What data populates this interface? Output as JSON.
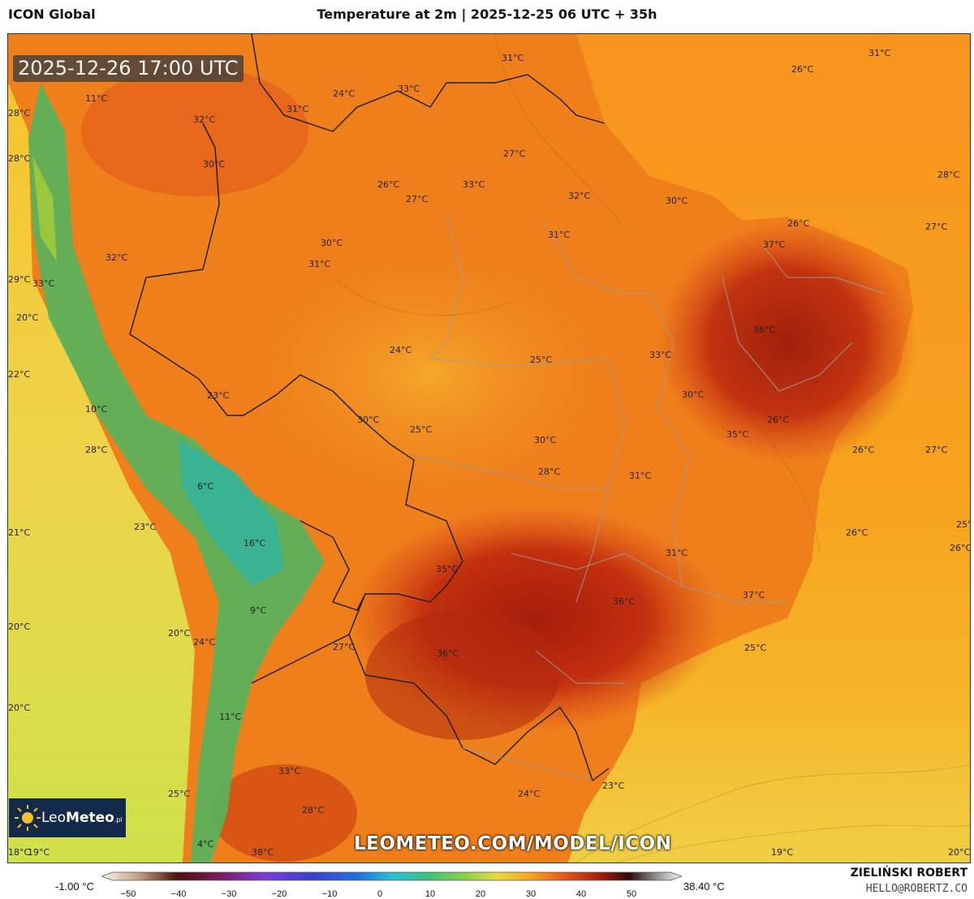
{
  "header": {
    "model": "ICON Global",
    "title": "Temperature at 2m | 2025-12-25 06 UTC + 35h"
  },
  "map": {
    "valid_time": "2025-12-26 17:00 UTC",
    "site_url": "LEOMETEO.COM/MODEL/ICON",
    "logo": {
      "name_regular": "Leo",
      "name_bold": "Meteo",
      "suffix": ".pl"
    },
    "temperature_labels": [
      "31°C",
      "33°C",
      "24°C",
      "31°C",
      "32°C",
      "26°C",
      "11°C",
      "28°C",
      "27°C",
      "28°C",
      "31°C",
      "30°C",
      "32°C",
      "33°C",
      "33°C",
      "26°C",
      "27°C",
      "32°C",
      "28°C",
      "30°C",
      "30°C",
      "31°C",
      "27°C",
      "37°C",
      "29°C",
      "31°C",
      "26°C",
      "20°C",
      "36°C",
      "24°C",
      "25°C",
      "33°C",
      "22°C",
      "23°C",
      "30°C",
      "10°C",
      "30°C",
      "25°C",
      "30°C",
      "26°C",
      "35°C",
      "26°C",
      "28°C",
      "27°C",
      "6°C",
      "28°C",
      "31°C",
      "23°C",
      "25°C",
      "21°C",
      "26°C",
      "26°C",
      "16°C",
      "31°C",
      "35°C",
      "37°C",
      "36°C",
      "9°C",
      "20°C",
      "20°C",
      "24°C",
      "27°C",
      "36°C",
      "25°C",
      "20°C",
      "11°C",
      "33°C",
      "25°C",
      "24°C",
      "23°C",
      "28°C",
      "18°C",
      "19°C",
      "4°C",
      "38°C",
      "19°C",
      "20°C"
    ]
  },
  "legend": {
    "min_label": "-1.00 °C",
    "max_label": "38.40 °C",
    "ticks": [
      "−50",
      "−40",
      "−30",
      "−20",
      "−10",
      "0",
      "10",
      "20",
      "30",
      "40",
      "50"
    ]
  },
  "footer": {
    "author": "ZIELIŃSKI ROBERT",
    "email": "HELLO@ROBERTZ.CO"
  },
  "colors": {
    "ocean_warm": "#f6a21c",
    "ocean_cool": "#e9d64a",
    "land_hot": "#e8561a",
    "land_very_hot": "#b8280e",
    "andes_cold": "#3ba86a"
  }
}
